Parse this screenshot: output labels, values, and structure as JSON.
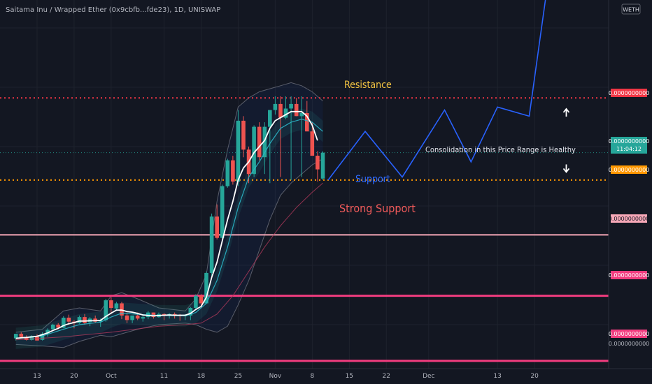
{
  "header": {
    "symbol_title": "Saitama Inu / Wrapped Ether (0x9cbfb...fde23), 1D, UNISWAP",
    "currency_badge": "WETH"
  },
  "colors": {
    "background": "#131722",
    "grid": "#1e222d",
    "axis_text": "#b2b5be",
    "bull": "#26a69a",
    "bear": "#ef5350",
    "ma_line": "#ffffff",
    "resistance": "#f23645",
    "support": "#ff9800",
    "strong_support": "#f7a8b8",
    "lower_support": "#f23c7f",
    "projection": "#2962ff",
    "label_resistance": "#f5c542",
    "label_support": "#2f6bff",
    "label_strong_support": "#f05a5a",
    "label_note": "#e0e3eb",
    "arrow": "#ffffff"
  },
  "annotations": {
    "resistance": "Resistance",
    "support": "Support",
    "strong_support": "Strong Support",
    "consolidation": "Consolidation in this Price Range is Healthy"
  },
  "price_axis": {
    "resistance_tag": "0.0000000000",
    "last_price_tag": "0.0000000000",
    "countdown": "11:04:12",
    "support_tag": "0.0000000000",
    "strong_support_tag": "0.0000000000",
    "level_1_tag": "0.0000000000",
    "level_2_tag": "0.0000000000",
    "bottom_tag": "0.0000000000"
  },
  "chart_data": {
    "type": "candlestick",
    "x_ticks": [
      "13",
      "20",
      "Oct",
      "11",
      "18",
      "25",
      "Nov",
      "8",
      "15",
      "22",
      "Dec",
      "13",
      "20"
    ],
    "x_tick_days": [
      -28,
      -21,
      -14,
      -4,
      3,
      10,
      17,
      24,
      31,
      38,
      46,
      59,
      66
    ],
    "x_range_days": [
      -35,
      80
    ],
    "y_range": [
      0,
      100
    ],
    "levels": {
      "resistance": 80,
      "support": 53,
      "strong_support": 35,
      "level_1": 15,
      "level_2": -6.4
    },
    "candles": [
      [
        -32,
        1,
        2.5,
        0.3,
        2.5
      ],
      [
        -31,
        2.5,
        3,
        1.3,
        1.5
      ],
      [
        -30,
        1.5,
        2,
        0.3,
        0.5
      ],
      [
        -29,
        0.5,
        2,
        0.3,
        1.8
      ],
      [
        -28,
        1.8,
        2.3,
        0.3,
        0.3
      ],
      [
        -27,
        0.5,
        3,
        0.3,
        2.5
      ],
      [
        -26,
        2.5,
        4.3,
        1.5,
        3.8
      ],
      [
        -25,
        4,
        5.8,
        3.8,
        5.5
      ],
      [
        -24,
        5.5,
        6,
        4,
        4.5
      ],
      [
        -23,
        4.5,
        8.3,
        4.3,
        7.8
      ],
      [
        -22,
        7.8,
        8.8,
        5.5,
        6.5
      ],
      [
        -21,
        6.5,
        7,
        4.3,
        6
      ],
      [
        -20,
        6,
        8.5,
        5.8,
        8
      ],
      [
        -19,
        8,
        9,
        5.5,
        6
      ],
      [
        -18,
        6.3,
        8,
        5,
        7.5
      ],
      [
        -17,
        7.5,
        8.5,
        6,
        6.5
      ],
      [
        -16,
        6.5,
        7.5,
        4.8,
        7
      ],
      [
        -15,
        7,
        14,
        6.5,
        13.5
      ],
      [
        -14,
        13.5,
        14.5,
        9,
        11
      ],
      [
        -13,
        10.8,
        13,
        10,
        12.5
      ],
      [
        -12,
        12.5,
        13,
        7.3,
        8.5
      ],
      [
        -11,
        8.5,
        9.5,
        6,
        7
      ],
      [
        -10,
        7,
        8.5,
        6,
        8.5
      ],
      [
        -9,
        8.5,
        9.5,
        7,
        7.5
      ],
      [
        -8,
        7.5,
        8.5,
        6.5,
        8
      ],
      [
        -7,
        8,
        10,
        7.3,
        9.5
      ],
      [
        -6,
        9.5,
        9.5,
        7.5,
        8
      ],
      [
        -5,
        8,
        9.5,
        7.8,
        9
      ],
      [
        -4,
        9,
        9.3,
        7,
        8.5
      ],
      [
        -3,
        8.5,
        9.3,
        7.5,
        9
      ],
      [
        -2,
        9,
        9.5,
        7.5,
        8.5
      ],
      [
        -1,
        8.5,
        9,
        6.8,
        8.3
      ],
      [
        0,
        8.3,
        9,
        7,
        8.5
      ],
      [
        1,
        8.5,
        11.3,
        7,
        11
      ],
      [
        2,
        11,
        15.5,
        10.5,
        15
      ],
      [
        3,
        15,
        15.5,
        11,
        12.5
      ],
      [
        4,
        12.5,
        23,
        12.5,
        22.5
      ],
      [
        5,
        22.5,
        42,
        21,
        41
      ],
      [
        6,
        41,
        45,
        33.5,
        34
      ],
      [
        7,
        34,
        51.5,
        32.5,
        51
      ],
      [
        8,
        51,
        60,
        50.5,
        59.5
      ],
      [
        9,
        59.5,
        61,
        51.5,
        52.5
      ],
      [
        10,
        52.5,
        76,
        51,
        72.5
      ],
      [
        11,
        72.5,
        74,
        60.5,
        63
      ],
      [
        12,
        63,
        64,
        52,
        55
      ],
      [
        13,
        55,
        71,
        54,
        70.5
      ],
      [
        14,
        70.5,
        72,
        59.5,
        60.5
      ],
      [
        15,
        60.5,
        72,
        55,
        70.5
      ],
      [
        16,
        70.5,
        76,
        52,
        76
      ],
      [
        17,
        76,
        80.5,
        74.5,
        78
      ],
      [
        18,
        78,
        80.5,
        54,
        73.5
      ],
      [
        19,
        73.5,
        80.5,
        73,
        76.5
      ],
      [
        20,
        76.5,
        80.5,
        53,
        78
      ],
      [
        21,
        78,
        80,
        74,
        74
      ],
      [
        22,
        74,
        80.5,
        54,
        75
      ],
      [
        23,
        75,
        79,
        69,
        69
      ],
      [
        24,
        69,
        72,
        61,
        61
      ],
      [
        25,
        61,
        62.5,
        52.5,
        56.5
      ],
      [
        26,
        53.5,
        62.5,
        53,
        62
      ]
    ],
    "ma_line": [
      [
        -32,
        1.0
      ],
      [
        -31,
        1.2
      ],
      [
        -30,
        1.3
      ],
      [
        -29,
        1.5
      ],
      [
        -28,
        1.7
      ],
      [
        -27,
        2.2
      ],
      [
        -26,
        2.8
      ],
      [
        -25,
        3.6
      ],
      [
        -24,
        4.3
      ],
      [
        -23,
        5.2
      ],
      [
        -22,
        5.8
      ],
      [
        -21,
        6.2
      ],
      [
        -20,
        6.7
      ],
      [
        -19,
        6.7
      ],
      [
        -18,
        6.8
      ],
      [
        -17,
        6.8
      ],
      [
        -16,
        6.9
      ],
      [
        -15,
        8.2
      ],
      [
        -14,
        9.3
      ],
      [
        -13,
        10.3
      ],
      [
        -12,
        10.3
      ],
      [
        -11,
        9.8
      ],
      [
        -10,
        9.6
      ],
      [
        -9,
        9.2
      ],
      [
        -8,
        8.7
      ],
      [
        -7,
        8.5
      ],
      [
        -6,
        8.4
      ],
      [
        -5,
        8.5
      ],
      [
        -4,
        8.6
      ],
      [
        -3,
        8.7
      ],
      [
        -2,
        8.6
      ],
      [
        -1,
        8.6
      ],
      [
        0,
        8.6
      ],
      [
        1,
        9.2
      ],
      [
        2,
        10.5
      ],
      [
        3,
        11.5
      ],
      [
        4,
        14.5
      ],
      [
        5,
        21
      ],
      [
        6,
        26
      ],
      [
        7,
        33
      ],
      [
        8,
        40
      ],
      [
        9,
        46
      ],
      [
        10,
        53
      ],
      [
        11,
        57
      ],
      [
        12,
        59
      ],
      [
        13,
        62
      ],
      [
        14,
        64
      ],
      [
        15,
        66
      ],
      [
        16,
        70
      ],
      [
        17,
        72.5
      ],
      [
        18,
        73.5
      ],
      [
        19,
        74.5
      ],
      [
        20,
        75.5
      ],
      [
        21,
        75.5
      ],
      [
        22,
        75.5
      ],
      [
        23,
        74
      ],
      [
        24,
        71
      ],
      [
        25,
        66
      ]
    ],
    "ema_line": [
      [
        -32,
        1.0
      ],
      [
        -27,
        1.8
      ],
      [
        -23,
        4.0
      ],
      [
        -20,
        5.5
      ],
      [
        -16,
        6.3
      ],
      [
        -14,
        8.0
      ],
      [
        -12,
        9.3
      ],
      [
        -9,
        8.9
      ],
      [
        -5,
        8.5
      ],
      [
        0,
        8.4
      ],
      [
        2,
        9.5
      ],
      [
        4,
        12.5
      ],
      [
        6,
        20
      ],
      [
        8,
        31
      ],
      [
        10,
        44
      ],
      [
        12,
        54
      ],
      [
        14,
        59
      ],
      [
        16,
        65
      ],
      [
        18,
        70
      ],
      [
        20,
        72
      ],
      [
        22,
        73
      ],
      [
        24,
        72
      ],
      [
        26,
        69
      ]
    ],
    "bollinger_upper": [
      [
        -32,
        3
      ],
      [
        -27,
        4
      ],
      [
        -23,
        10
      ],
      [
        -20,
        11
      ],
      [
        -16,
        10
      ],
      [
        -14,
        15
      ],
      [
        -12,
        16
      ],
      [
        -9,
        14
      ],
      [
        -5,
        11
      ],
      [
        0,
        10
      ],
      [
        2,
        14
      ],
      [
        4,
        22
      ],
      [
        6,
        46
      ],
      [
        8,
        63
      ],
      [
        10,
        77
      ],
      [
        12,
        80
      ],
      [
        14,
        82
      ],
      [
        16,
        83
      ],
      [
        18,
        84
      ],
      [
        20,
        85
      ],
      [
        22,
        84
      ],
      [
        24,
        82
      ],
      [
        26,
        79
      ]
    ],
    "bollinger_lower": [
      [
        -32,
        -1
      ],
      [
        -27,
        -1.5
      ],
      [
        -23,
        -2
      ],
      [
        -20,
        0
      ],
      [
        -16,
        2
      ],
      [
        -14,
        1.5
      ],
      [
        -12,
        2.5
      ],
      [
        -9,
        4
      ],
      [
        -5,
        5.5
      ],
      [
        0,
        6
      ],
      [
        2,
        5.5
      ],
      [
        4,
        4
      ],
      [
        6,
        3
      ],
      [
        8,
        5
      ],
      [
        10,
        12
      ],
      [
        12,
        20
      ],
      [
        14,
        30
      ],
      [
        16,
        40
      ],
      [
        18,
        48
      ],
      [
        20,
        52
      ],
      [
        22,
        55
      ],
      [
        24,
        58
      ],
      [
        26,
        60
      ]
    ],
    "ma_slow": [
      [
        -32,
        0.5
      ],
      [
        -23,
        1.5
      ],
      [
        -14,
        3
      ],
      [
        -5,
        5
      ],
      [
        0,
        5.5
      ],
      [
        3,
        6
      ],
      [
        6,
        9
      ],
      [
        9,
        15
      ],
      [
        12,
        23
      ],
      [
        15,
        31
      ],
      [
        18,
        38
      ],
      [
        21,
        44
      ],
      [
        24,
        49
      ],
      [
        26,
        52
      ]
    ],
    "projection": [
      [
        27,
        53
      ],
      [
        34,
        69
      ],
      [
        41,
        54
      ],
      [
        49,
        76
      ],
      [
        54,
        59
      ],
      [
        59,
        77
      ],
      [
        65,
        74
      ],
      [
        69,
        124
      ]
    ],
    "arrows": [
      {
        "day": 72,
        "value": 75,
        "direction": "up"
      },
      {
        "day": 72,
        "value": 57,
        "direction": "down"
      }
    ]
  }
}
